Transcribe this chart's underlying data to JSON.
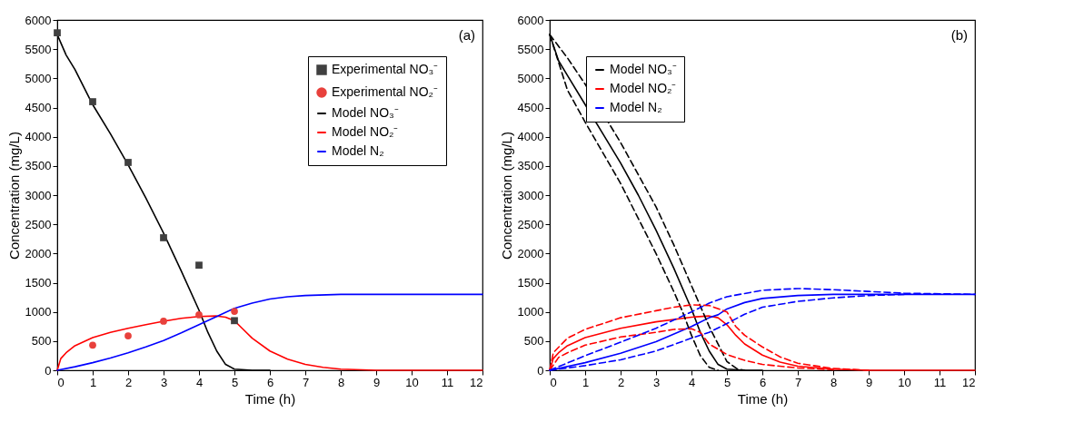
{
  "chart_data": [
    {
      "type": "line",
      "xlabel": "Time (h)",
      "ylabel": "Concentration (mg/L)",
      "annotations": [
        "(a)"
      ],
      "legend": "top right",
      "xlim": [
        0,
        12
      ],
      "xticks": [
        0,
        1,
        2,
        3,
        4,
        5,
        6,
        7,
        8,
        9,
        10,
        11,
        12
      ],
      "ylim": [
        0,
        6000
      ],
      "yticks": [
        0,
        500,
        1000,
        1500,
        2000,
        2500,
        3000,
        3500,
        4000,
        4500,
        5000,
        5500,
        6000
      ],
      "series": [
        {
          "name": "Experimental NO₃⁻",
          "type": "scatter",
          "marker": "square",
          "color": "#404040",
          "x": [
            0,
            1,
            2,
            3,
            4,
            5
          ],
          "values": [
            5780,
            4600,
            3560,
            2270,
            1800,
            850
          ]
        },
        {
          "name": "Experimental NO₂⁻",
          "type": "scatter",
          "marker": "circle",
          "color": "#e8413c",
          "x": [
            1,
            2,
            3,
            4,
            5
          ],
          "values": [
            430,
            590,
            840,
            950,
            1010
          ]
        },
        {
          "name": "Model NO₃⁻",
          "color": "#000000",
          "x": [
            0,
            0.25,
            0.5,
            1,
            1.5,
            2,
            2.5,
            3,
            3.5,
            4,
            4.25,
            4.5,
            4.75,
            5,
            5.5,
            6
          ],
          "values": [
            5750,
            5400,
            5150,
            4550,
            4050,
            3520,
            2950,
            2350,
            1700,
            1030,
            650,
            330,
            100,
            20,
            0,
            0
          ]
        },
        {
          "name": "Model NO₂⁻",
          "color": "#ff0000",
          "x": [
            0,
            0.1,
            0.25,
            0.5,
            1,
            1.5,
            2,
            2.5,
            3,
            3.5,
            4,
            4.5,
            4.75,
            5,
            5.25,
            5.5,
            6,
            6.5,
            7,
            7.5,
            8,
            9,
            10,
            12
          ],
          "values": [
            0,
            200,
            300,
            420,
            560,
            650,
            720,
            780,
            840,
            890,
            920,
            930,
            910,
            850,
            700,
            550,
            330,
            190,
            100,
            50,
            20,
            0,
            0,
            0
          ]
        },
        {
          "name": "Model N₂",
          "color": "#0000ff",
          "x": [
            0,
            0.5,
            1,
            1.5,
            2,
            2.5,
            3,
            3.5,
            4,
            4.5,
            5,
            5.5,
            6,
            6.5,
            7,
            8,
            9,
            12
          ],
          "values": [
            0,
            60,
            130,
            210,
            300,
            400,
            510,
            640,
            780,
            920,
            1060,
            1150,
            1220,
            1260,
            1280,
            1300,
            1300,
            1300
          ]
        }
      ]
    },
    {
      "type": "line",
      "xlabel": "Time (h)",
      "ylabel": "Concentration (mg/L)",
      "annotations": [
        "(b)"
      ],
      "legend": "top left",
      "xlim": [
        0,
        12
      ],
      "xticks": [
        0,
        1,
        2,
        3,
        4,
        5,
        6,
        7,
        8,
        9,
        10,
        11,
        12
      ],
      "ylim": [
        0,
        6000
      ],
      "yticks": [
        0,
        500,
        1000,
        1500,
        2000,
        2500,
        3000,
        3500,
        4000,
        4500,
        5000,
        5500,
        6000
      ],
      "series": [
        {
          "name": "Model NO₃⁻",
          "color": "#000000",
          "x": [
            0,
            0.25,
            0.5,
            1,
            1.5,
            2,
            2.5,
            3,
            3.5,
            4,
            4.25,
            4.5,
            4.75,
            5,
            5.5,
            6
          ],
          "values": [
            5750,
            5300,
            5050,
            4550,
            4050,
            3550,
            3000,
            2400,
            1750,
            1050,
            650,
            330,
            100,
            20,
            0,
            0
          ]
        },
        {
          "name": "Model NO₂⁻",
          "color": "#ff0000",
          "x": [
            0,
            0.1,
            0.25,
            0.5,
            1,
            2,
            3,
            4,
            4.5,
            4.75,
            5,
            5.25,
            5.5,
            6,
            6.5,
            7,
            8,
            9,
            12
          ],
          "values": [
            0,
            200,
            300,
            420,
            560,
            720,
            830,
            910,
            930,
            900,
            780,
            600,
            450,
            260,
            140,
            70,
            20,
            0,
            0
          ]
        },
        {
          "name": "Model N₂",
          "color": "#0000ff",
          "x": [
            0,
            1,
            2,
            3,
            4,
            4.5,
            4.75,
            5,
            5.5,
            6,
            7,
            8,
            12
          ],
          "values": [
            0,
            130,
            290,
            490,
            750,
            900,
            950,
            1050,
            1160,
            1230,
            1280,
            1300,
            1300
          ]
        },
        {
          "color": "#000000",
          "line_style": "dashed",
          "x": [
            0,
            0.5,
            1,
            2,
            3,
            3.5,
            4,
            4.5,
            5,
            5.3,
            5.5
          ],
          "values": [
            5750,
            5350,
            4900,
            3900,
            2800,
            2150,
            1450,
            750,
            150,
            20,
            0
          ]
        },
        {
          "color": "#000000",
          "line_style": "dashed",
          "x": [
            0,
            0.5,
            1,
            2,
            3,
            3.5,
            3.75,
            4,
            4.25,
            4.5,
            4.75
          ],
          "values": [
            5750,
            4800,
            4250,
            3200,
            2000,
            1350,
            1000,
            600,
            250,
            50,
            0
          ]
        },
        {
          "color": "#ff0000",
          "line_style": "dashed",
          "x": [
            0,
            0.1,
            0.5,
            1,
            2,
            3,
            3.5,
            4,
            4.5,
            5,
            5.25,
            5.5,
            6,
            6.5,
            7,
            8,
            9
          ],
          "values": [
            0,
            300,
            550,
            700,
            900,
            1020,
            1080,
            1120,
            1110,
            1000,
            750,
            600,
            400,
            230,
            120,
            30,
            0
          ]
        },
        {
          "color": "#ff0000",
          "line_style": "dashed",
          "x": [
            0,
            0.25,
            0.5,
            1,
            2,
            3,
            3.5,
            4,
            4.25,
            4.5,
            5,
            5.5,
            6,
            7,
            8
          ],
          "values": [
            0,
            220,
            300,
            430,
            570,
            650,
            700,
            710,
            650,
            450,
            270,
            170,
            100,
            40,
            10
          ]
        },
        {
          "color": "#0000ff",
          "line_style": "dashed",
          "x": [
            0,
            1,
            2,
            3,
            4,
            4.5,
            5,
            6,
            7,
            8,
            9,
            10,
            12
          ],
          "values": [
            0,
            250,
            480,
            720,
            1000,
            1150,
            1260,
            1370,
            1400,
            1380,
            1350,
            1320,
            1300
          ]
        },
        {
          "color": "#0000ff",
          "line_style": "dashed",
          "x": [
            0,
            1,
            2,
            3,
            4,
            4.5,
            5,
            5.5,
            6,
            7,
            8,
            9,
            10
          ],
          "values": [
            0,
            80,
            180,
            330,
            550,
            650,
            800,
            960,
            1080,
            1180,
            1240,
            1280,
            1300
          ]
        }
      ]
    }
  ]
}
